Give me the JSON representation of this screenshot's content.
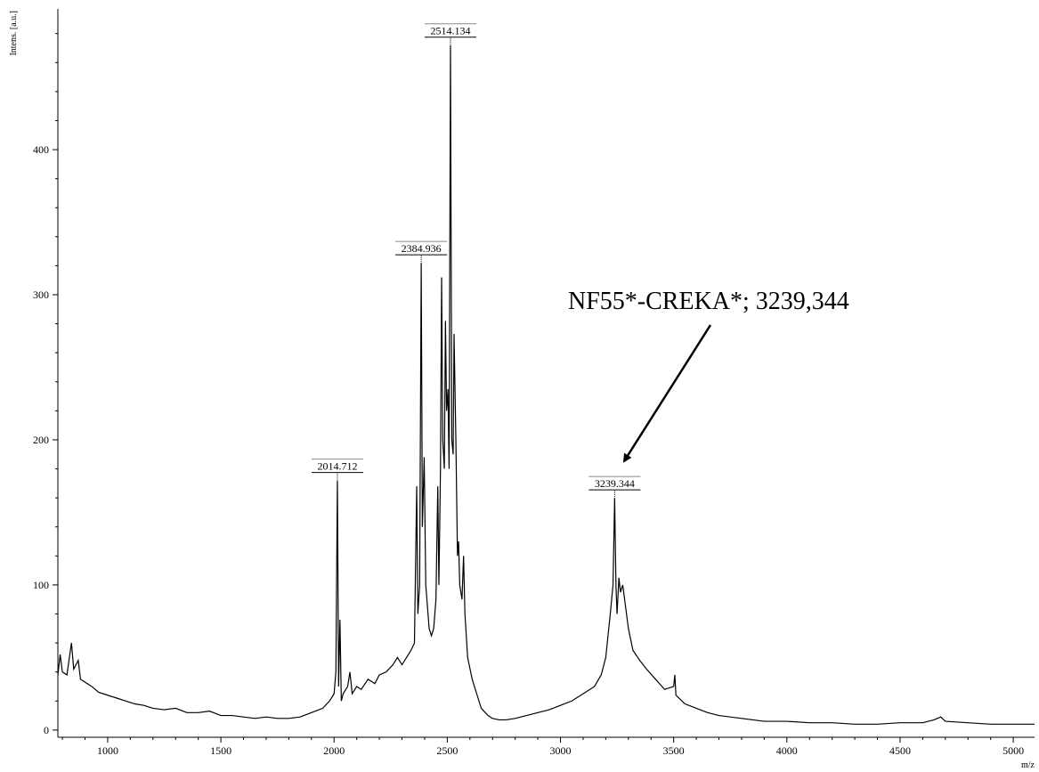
{
  "chart_data": {
    "type": "line",
    "ylabel": "Intens. [a.u.]",
    "xlabel": "m/z",
    "annotation": "NF55*-CREKA*; 3239,344",
    "color": "#000000",
    "xlim": [
      780,
      5094
    ],
    "ylim": [
      -5,
      497
    ],
    "xticks": [
      1000,
      1500,
      2000,
      2500,
      3000,
      3500,
      4000,
      4500,
      5000
    ],
    "yticks": [
      0,
      100,
      200,
      300,
      400
    ],
    "xminorticks": [
      800,
      900,
      1100,
      1200,
      1300,
      1400,
      1600,
      1700,
      1800,
      1900,
      2100,
      2200,
      2300,
      2400,
      2600,
      2700,
      2800,
      2900,
      3100,
      3200,
      3300,
      3400,
      3600,
      3700,
      3800,
      3900,
      4100,
      4200,
      4300,
      4400,
      4600,
      4700,
      4800,
      4900
    ],
    "yminorticks": [
      20,
      40,
      60,
      80,
      120,
      140,
      160,
      180,
      220,
      240,
      260,
      280,
      320,
      340,
      360,
      380,
      420,
      440,
      460,
      480
    ],
    "peaks": [
      {
        "x": 2014.712,
        "y": 172
      },
      {
        "x": 2384.936,
        "y": 322
      },
      {
        "x": 2514.134,
        "y": 472
      },
      {
        "x": 3239.344,
        "y": 160
      }
    ],
    "x": [
      780,
      790,
      800,
      820,
      840,
      850,
      870,
      880,
      900,
      930,
      960,
      1000,
      1040,
      1080,
      1120,
      1160,
      1200,
      1250,
      1300,
      1350,
      1400,
      1450,
      1500,
      1550,
      1600,
      1650,
      1700,
      1750,
      1800,
      1850,
      1900,
      1950,
      1980,
      2000,
      2008,
      2014.712,
      2020,
      2026,
      2032,
      2040,
      2060,
      2070,
      2080,
      2100,
      2120,
      2150,
      2180,
      2200,
      2230,
      2260,
      2280,
      2300,
      2320,
      2340,
      2355,
      2365,
      2370,
      2378,
      2384.936,
      2390,
      2398,
      2405,
      2420,
      2430,
      2440,
      2450,
      2458,
      2463,
      2470,
      2475,
      2480,
      2487,
      2492,
      2497,
      2503,
      2508,
      2514.134,
      2520,
      2526,
      2530,
      2538,
      2545,
      2550,
      2555,
      2565,
      2572,
      2578,
      2590,
      2610,
      2630,
      2650,
      2680,
      2700,
      2730,
      2760,
      2800,
      2850,
      2900,
      2950,
      3000,
      3050,
      3100,
      3150,
      3180,
      3200,
      3220,
      3232,
      3239.344,
      3245,
      3250,
      3258,
      3265,
      3275,
      3285,
      3300,
      3320,
      3350,
      3380,
      3420,
      3460,
      3500,
      3505,
      3510,
      3550,
      3600,
      3650,
      3700,
      3750,
      3800,
      3900,
      4000,
      4100,
      4200,
      4300,
      4400,
      4500,
      4600,
      4650,
      4680,
      4700,
      4800,
      4900,
      5000,
      5094
    ],
    "values": [
      38,
      52,
      40,
      38,
      60,
      42,
      48,
      35,
      33,
      30,
      26,
      24,
      22,
      20,
      18,
      17,
      15,
      14,
      15,
      12,
      12,
      13,
      10,
      10,
      9,
      8,
      9,
      8,
      8,
      9,
      12,
      15,
      20,
      25,
      40,
      172,
      30,
      76,
      20,
      25,
      30,
      40,
      25,
      30,
      28,
      35,
      32,
      38,
      40,
      45,
      50,
      45,
      50,
      55,
      60,
      168,
      80,
      100,
      322,
      140,
      188,
      100,
      70,
      65,
      70,
      90,
      168,
      100,
      180,
      312,
      200,
      180,
      282,
      220,
      235,
      180,
      472,
      200,
      190,
      273,
      200,
      120,
      130,
      100,
      90,
      120,
      80,
      50,
      35,
      25,
      15,
      10,
      8,
      7,
      7,
      8,
      10,
      12,
      14,
      17,
      20,
      25,
      30,
      38,
      50,
      80,
      100,
      160,
      100,
      80,
      105,
      95,
      100,
      88,
      70,
      55,
      48,
      42,
      35,
      28,
      30,
      38,
      24,
      18,
      15,
      12,
      10,
      9,
      8,
      6,
      6,
      5,
      5,
      4,
      4,
      5,
      5,
      7,
      9,
      6,
      5,
      4,
      4,
      4
    ]
  }
}
